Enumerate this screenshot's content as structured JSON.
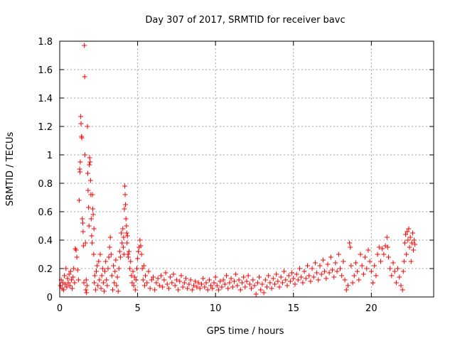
{
  "chart_data": {
    "type": "scatter",
    "title": "Day 307 of 2017, SRMTID for receiver bavc",
    "xlabel": "GPS time / hours",
    "ylabel": "SRMTID / TECUs",
    "xlim": [
      0,
      24
    ],
    "ylim": [
      0,
      1.8
    ],
    "xticks": [
      0,
      5,
      10,
      15,
      20
    ],
    "yticks": [
      0,
      0.2,
      0.4,
      0.6,
      0.8,
      1,
      1.2,
      1.4,
      1.6,
      1.8
    ],
    "xtick_labels": [
      "0",
      "5",
      "10",
      "15",
      "20"
    ],
    "ytick_labels": [
      "0",
      "0.2",
      "0.4",
      "0.6",
      "0.8",
      "1",
      "1.2",
      "1.4",
      "1.6",
      "1.8"
    ],
    "grid": true,
    "marker": "+",
    "color": "#ff0000",
    "series": [
      {
        "name": "SRMTID",
        "points": [
          [
            0.05,
            0.08
          ],
          [
            0.1,
            0.12
          ],
          [
            0.15,
            0.06
          ],
          [
            0.2,
            0.1
          ],
          [
            0.25,
            0.05
          ],
          [
            0.3,
            0.15
          ],
          [
            0.35,
            0.09
          ],
          [
            0.4,
            0.2
          ],
          [
            0.45,
            0.07
          ],
          [
            0.5,
            0.13
          ],
          [
            0.55,
            0.1
          ],
          [
            0.6,
            0.16
          ],
          [
            0.65,
            0.08
          ],
          [
            0.7,
            0.18
          ],
          [
            0.75,
            0.12
          ],
          [
            0.8,
            0.06
          ],
          [
            0.85,
            0.14
          ],
          [
            0.9,
            0.2
          ],
          [
            0.95,
            0.1
          ],
          [
            1.0,
            0.34
          ],
          [
            1.05,
            0.33
          ],
          [
            1.1,
            0.28
          ],
          [
            1.15,
            0.19
          ],
          [
            1.2,
            0.12
          ],
          [
            1.25,
            0.68
          ],
          [
            1.28,
            0.9
          ],
          [
            1.3,
            0.88
          ],
          [
            1.32,
            0.95
          ],
          [
            1.35,
            1.27
          ],
          [
            1.37,
            1.22
          ],
          [
            1.4,
            1.13
          ],
          [
            1.42,
            1.12
          ],
          [
            1.45,
            0.55
          ],
          [
            1.48,
            0.52
          ],
          [
            1.5,
            0.46
          ],
          [
            1.52,
            0.36
          ],
          [
            1.55,
            0.1
          ],
          [
            1.58,
            1.77
          ],
          [
            1.6,
            1.55
          ],
          [
            1.62,
            1.0
          ],
          [
            1.65,
            0.38
          ],
          [
            1.68,
            0.05
          ],
          [
            1.7,
            0.12
          ],
          [
            1.72,
            0.03
          ],
          [
            1.75,
            0.08
          ],
          [
            1.78,
            1.2
          ],
          [
            1.8,
            0.87
          ],
          [
            1.82,
            0.75
          ],
          [
            1.85,
            0.63
          ],
          [
            1.88,
            0.5
          ],
          [
            1.9,
            0.93
          ],
          [
            1.92,
            0.98
          ],
          [
            1.95,
            0.95
          ],
          [
            1.98,
            0.82
          ],
          [
            2.0,
            0.72
          ],
          [
            2.02,
            0.55
          ],
          [
            2.05,
            0.43
          ],
          [
            2.08,
            0.38
          ],
          [
            2.1,
            0.72
          ],
          [
            2.12,
            0.62
          ],
          [
            2.15,
            0.58
          ],
          [
            2.18,
            0.3
          ],
          [
            2.2,
            0.48
          ],
          [
            2.22,
            0.1
          ],
          [
            2.25,
            0.15
          ],
          [
            2.3,
            0.05
          ],
          [
            2.35,
            0.18
          ],
          [
            2.4,
            0.22
          ],
          [
            2.45,
            0.08
          ],
          [
            2.5,
            0.25
          ],
          [
            2.55,
            0.12
          ],
          [
            2.6,
            0.3
          ],
          [
            2.65,
            0.06
          ],
          [
            2.7,
            0.15
          ],
          [
            2.75,
            0.2
          ],
          [
            2.8,
            0.1
          ],
          [
            2.85,
            0.04
          ],
          [
            2.9,
            0.18
          ],
          [
            2.95,
            0.25
          ],
          [
            3.0,
            0.12
          ],
          [
            3.05,
            0.08
          ],
          [
            3.1,
            0.2
          ],
          [
            3.15,
            0.28
          ],
          [
            3.2,
            0.35
          ],
          [
            3.25,
            0.42
          ],
          [
            3.3,
            0.3
          ],
          [
            3.35,
            0.15
          ],
          [
            3.4,
            0.05
          ],
          [
            3.45,
            0.22
          ],
          [
            3.5,
            0.1
          ],
          [
            3.55,
            0.18
          ],
          [
            3.6,
            0.26
          ],
          [
            3.65,
            0.08
          ],
          [
            3.7,
            0.14
          ],
          [
            3.75,
            0.04
          ],
          [
            3.8,
            0.2
          ],
          [
            3.85,
            0.32
          ],
          [
            3.9,
            0.28
          ],
          [
            3.95,
            0.45
          ],
          [
            4.0,
            0.38
          ],
          [
            4.05,
            0.48
          ],
          [
            4.08,
            0.35
          ],
          [
            4.1,
            0.42
          ],
          [
            4.12,
            0.3
          ],
          [
            4.15,
            0.62
          ],
          [
            4.18,
            0.78
          ],
          [
            4.2,
            0.72
          ],
          [
            4.22,
            0.65
          ],
          [
            4.25,
            0.55
          ],
          [
            4.28,
            0.5
          ],
          [
            4.3,
            0.45
          ],
          [
            4.32,
            0.38
          ],
          [
            4.35,
            0.43
          ],
          [
            4.38,
            0.3
          ],
          [
            4.4,
            0.28
          ],
          [
            4.45,
            0.32
          ],
          [
            4.5,
            0.2
          ],
          [
            4.55,
            0.25
          ],
          [
            4.6,
            0.15
          ],
          [
            4.65,
            0.1
          ],
          [
            4.7,
            0.18
          ],
          [
            4.75,
            0.08
          ],
          [
            4.8,
            0.14
          ],
          [
            4.85,
            0.05
          ],
          [
            4.9,
            0.12
          ],
          [
            4.95,
            0.2
          ],
          [
            5.0,
            0.27
          ],
          [
            5.05,
            0.32
          ],
          [
            5.1,
            0.35
          ],
          [
            5.15,
            0.4
          ],
          [
            5.2,
            0.36
          ],
          [
            5.25,
            0.3
          ],
          [
            5.3,
            0.2
          ],
          [
            5.35,
            0.12
          ],
          [
            5.4,
            0.22
          ],
          [
            5.45,
            0.08
          ],
          [
            5.5,
            0.15
          ],
          [
            5.6,
            0.1
          ],
          [
            5.7,
            0.18
          ],
          [
            5.8,
            0.06
          ],
          [
            5.9,
            0.12
          ],
          [
            6.0,
            0.14
          ],
          [
            6.1,
            0.05
          ],
          [
            6.2,
            0.1
          ],
          [
            6.3,
            0.13
          ],
          [
            6.4,
            0.08
          ],
          [
            6.5,
            0.15
          ],
          [
            6.6,
            0.07
          ],
          [
            6.7,
            0.12
          ],
          [
            6.8,
            0.17
          ],
          [
            6.9,
            0.09
          ],
          [
            7.0,
            0.06
          ],
          [
            7.1,
            0.14
          ],
          [
            7.2,
            0.1
          ],
          [
            7.3,
            0.16
          ],
          [
            7.4,
            0.08
          ],
          [
            7.5,
            0.12
          ],
          [
            7.6,
            0.05
          ],
          [
            7.7,
            0.11
          ],
          [
            7.8,
            0.15
          ],
          [
            7.9,
            0.07
          ],
          [
            8.0,
            0.1
          ],
          [
            8.1,
            0.13
          ],
          [
            8.2,
            0.06
          ],
          [
            8.3,
            0.09
          ],
          [
            8.4,
            0.12
          ],
          [
            8.5,
            0.05
          ],
          [
            8.6,
            0.08
          ],
          [
            8.7,
            0.11
          ],
          [
            8.8,
            0.07
          ],
          [
            8.9,
            0.1
          ],
          [
            9.0,
            0.06
          ],
          [
            9.1,
            0.09
          ],
          [
            9.2,
            0.13
          ],
          [
            9.3,
            0.07
          ],
          [
            9.4,
            0.1
          ],
          [
            9.5,
            0.05
          ],
          [
            9.6,
            0.12
          ],
          [
            9.7,
            0.08
          ],
          [
            9.8,
            0.06
          ],
          [
            9.9,
            0.1
          ],
          [
            10.0,
            0.14
          ],
          [
            10.1,
            0.08
          ],
          [
            10.2,
            0.05
          ],
          [
            10.3,
            0.11
          ],
          [
            10.4,
            0.07
          ],
          [
            10.5,
            0.12
          ],
          [
            10.6,
            0.09
          ],
          [
            10.7,
            0.15
          ],
          [
            10.8,
            0.06
          ],
          [
            10.9,
            0.1
          ],
          [
            11.0,
            0.13
          ],
          [
            11.1,
            0.07
          ],
          [
            11.2,
            0.11
          ],
          [
            11.3,
            0.16
          ],
          [
            11.4,
            0.08
          ],
          [
            11.5,
            0.12
          ],
          [
            11.6,
            0.05
          ],
          [
            11.7,
            0.1
          ],
          [
            11.8,
            0.14
          ],
          [
            11.9,
            0.07
          ],
          [
            12.0,
            0.11
          ],
          [
            12.1,
            0.15
          ],
          [
            12.2,
            0.09
          ],
          [
            12.3,
            0.06
          ],
          [
            12.4,
            0.12
          ],
          [
            12.5,
            0.08
          ],
          [
            12.6,
            0.02
          ],
          [
            12.7,
            0.1
          ],
          [
            12.8,
            0.14
          ],
          [
            12.9,
            0.05
          ],
          [
            13.0,
            0.09
          ],
          [
            13.1,
            0.03
          ],
          [
            13.2,
            0.12
          ],
          [
            13.3,
            0.07
          ],
          [
            13.4,
            0.15
          ],
          [
            13.5,
            0.1
          ],
          [
            13.6,
            0.06
          ],
          [
            13.7,
            0.13
          ],
          [
            13.8,
            0.09
          ],
          [
            13.9,
            0.16
          ],
          [
            14.0,
            0.11
          ],
          [
            14.1,
            0.07
          ],
          [
            14.2,
            0.14
          ],
          [
            14.3,
            0.1
          ],
          [
            14.4,
            0.18
          ],
          [
            14.5,
            0.12
          ],
          [
            14.6,
            0.08
          ],
          [
            14.7,
            0.15
          ],
          [
            14.8,
            0.11
          ],
          [
            14.9,
            0.17
          ],
          [
            15.0,
            0.13
          ],
          [
            15.1,
            0.09
          ],
          [
            15.2,
            0.16
          ],
          [
            15.3,
            0.12
          ],
          [
            15.4,
            0.2
          ],
          [
            15.5,
            0.14
          ],
          [
            15.6,
            0.1
          ],
          [
            15.7,
            0.18
          ],
          [
            15.8,
            0.13
          ],
          [
            15.9,
            0.22
          ],
          [
            16.0,
            0.15
          ],
          [
            16.1,
            0.11
          ],
          [
            16.2,
            0.2
          ],
          [
            16.3,
            0.14
          ],
          [
            16.4,
            0.24
          ],
          [
            16.5,
            0.17
          ],
          [
            16.6,
            0.12
          ],
          [
            16.7,
            0.22
          ],
          [
            16.8,
            0.16
          ],
          [
            16.9,
            0.26
          ],
          [
            17.0,
            0.18
          ],
          [
            17.1,
            0.13
          ],
          [
            17.2,
            0.23
          ],
          [
            17.3,
            0.17
          ],
          [
            17.4,
            0.28
          ],
          [
            17.5,
            0.19
          ],
          [
            17.6,
            0.14
          ],
          [
            17.7,
            0.24
          ],
          [
            17.8,
            0.18
          ],
          [
            17.9,
            0.3
          ],
          [
            18.0,
            0.2
          ],
          [
            18.1,
            0.15
          ],
          [
            18.2,
            0.25
          ],
          [
            18.3,
            0.12
          ],
          [
            18.4,
            0.05
          ],
          [
            18.5,
            0.08
          ],
          [
            18.6,
            0.38
          ],
          [
            18.65,
            0.35
          ],
          [
            18.7,
            0.22
          ],
          [
            18.8,
            0.1
          ],
          [
            18.9,
            0.15
          ],
          [
            19.0,
            0.24
          ],
          [
            19.1,
            0.18
          ],
          [
            19.2,
            0.12
          ],
          [
            19.3,
            0.3
          ],
          [
            19.4,
            0.22
          ],
          [
            19.5,
            0.16
          ],
          [
            19.6,
            0.28
          ],
          [
            19.7,
            0.2
          ],
          [
            19.8,
            0.33
          ],
          [
            19.9,
            0.25
          ],
          [
            20.0,
            0.18
          ],
          [
            20.1,
            0.1
          ],
          [
            20.2,
            0.22
          ],
          [
            20.3,
            0.15
          ],
          [
            20.4,
            0.3
          ],
          [
            20.5,
            0.35
          ],
          [
            20.6,
            0.25
          ],
          [
            20.7,
            0.34
          ],
          [
            20.8,
            0.3
          ],
          [
            20.9,
            0.36
          ],
          [
            21.0,
            0.42
          ],
          [
            21.05,
            0.35
          ],
          [
            21.1,
            0.28
          ],
          [
            21.2,
            0.2
          ],
          [
            21.3,
            0.15
          ],
          [
            21.4,
            0.24
          ],
          [
            21.5,
            0.18
          ],
          [
            21.6,
            0.1
          ],
          [
            21.7,
            0.2
          ],
          [
            21.8,
            0.14
          ],
          [
            21.9,
            0.08
          ],
          [
            22.0,
            0.05
          ],
          [
            22.05,
            0.18
          ],
          [
            22.1,
            0.25
          ],
          [
            22.15,
            0.38
          ],
          [
            22.2,
            0.44
          ],
          [
            22.25,
            0.3
          ],
          [
            22.3,
            0.46
          ],
          [
            22.35,
            0.4
          ],
          [
            22.4,
            0.48
          ],
          [
            22.45,
            0.35
          ],
          [
            22.5,
            0.42
          ],
          [
            22.55,
            0.25
          ],
          [
            22.6,
            0.38
          ],
          [
            22.65,
            0.45
          ],
          [
            22.7,
            0.33
          ],
          [
            22.75,
            0.4
          ],
          [
            22.8,
            0.37
          ]
        ]
      }
    ]
  }
}
